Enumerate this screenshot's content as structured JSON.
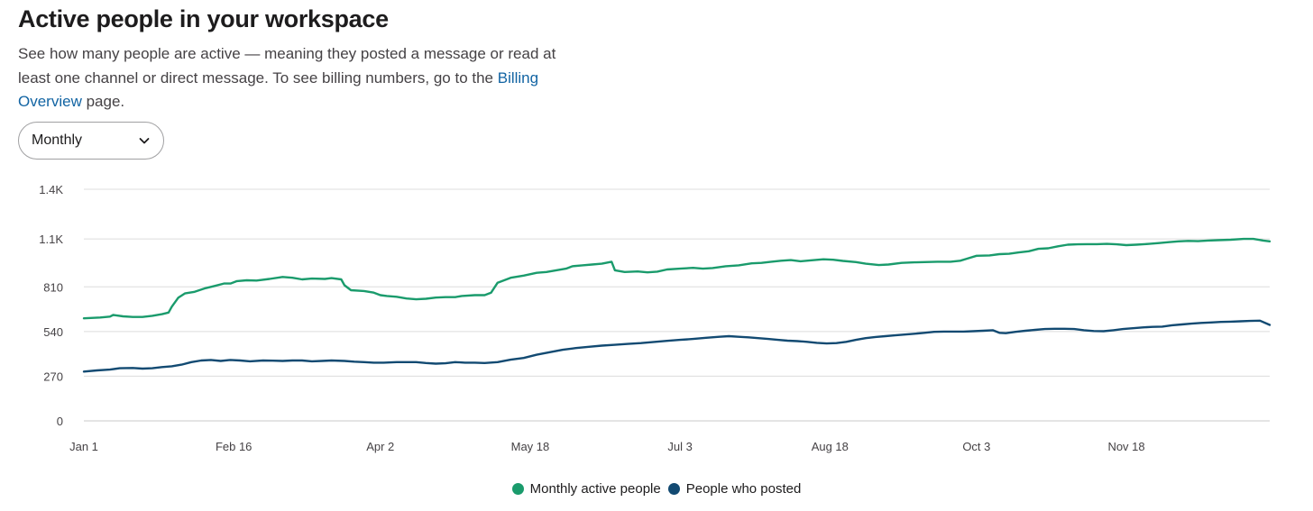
{
  "header": {
    "title": "Active people in your workspace",
    "description_prefix": "See how many people are active — meaning they posted a message or read at least one channel or direct message. To see billing numbers, go to the",
    "link_text": "Billing Overview",
    "description_suffix": "page."
  },
  "period_select": {
    "selected": "Monthly"
  },
  "colors": {
    "active": "#1a9b6c",
    "posted": "#124a72",
    "grid": "#dcdcdc",
    "link": "#1264a3"
  },
  "chart_data": {
    "type": "line",
    "title": "",
    "xlabel": "",
    "ylabel": "",
    "ylim": [
      0,
      1400
    ],
    "y_ticks": [
      0,
      270,
      540,
      810,
      1100,
      1400
    ],
    "y_tick_labels": [
      "0",
      "270",
      "540",
      "810",
      "1.1K",
      "1.4K"
    ],
    "x_range": [
      0,
      364
    ],
    "x_ticks": [
      0,
      46,
      91,
      137,
      183,
      229,
      274,
      320
    ],
    "x_tick_labels": [
      "Jan 1",
      "Feb 16",
      "Apr 2",
      "May 18",
      "Jul 3",
      "Aug 18",
      "Oct 3",
      "Nov 18"
    ],
    "legend": [
      "Monthly active people",
      "People who posted"
    ],
    "series": [
      {
        "name": "Monthly active people",
        "color": "#1a9b6c",
        "points": [
          [
            0,
            620
          ],
          [
            5,
            625
          ],
          [
            8,
            630
          ],
          [
            9,
            640
          ],
          [
            12,
            632
          ],
          [
            15,
            628
          ],
          [
            18,
            628
          ],
          [
            21,
            635
          ],
          [
            24,
            645
          ],
          [
            26,
            655
          ],
          [
            27,
            690
          ],
          [
            29,
            745
          ],
          [
            31,
            770
          ],
          [
            34,
            780
          ],
          [
            37,
            800
          ],
          [
            40,
            815
          ],
          [
            43,
            830
          ],
          [
            45,
            830
          ],
          [
            47,
            845
          ],
          [
            50,
            850
          ],
          [
            53,
            848
          ],
          [
            57,
            858
          ],
          [
            61,
            870
          ],
          [
            64,
            865
          ],
          [
            67,
            855
          ],
          [
            70,
            860
          ],
          [
            74,
            858
          ],
          [
            76,
            863
          ],
          [
            79,
            855
          ],
          [
            80,
            820
          ],
          [
            82,
            790
          ],
          [
            86,
            785
          ],
          [
            89,
            775
          ],
          [
            91,
            760
          ],
          [
            93,
            755
          ],
          [
            96,
            750
          ],
          [
            99,
            740
          ],
          [
            102,
            735
          ],
          [
            105,
            738
          ],
          [
            108,
            745
          ],
          [
            111,
            748
          ],
          [
            114,
            748
          ],
          [
            116,
            755
          ],
          [
            120,
            760
          ],
          [
            123,
            760
          ],
          [
            125,
            775
          ],
          [
            127,
            835
          ],
          [
            131,
            865
          ],
          [
            135,
            878
          ],
          [
            139,
            895
          ],
          [
            142,
            900
          ],
          [
            145,
            910
          ],
          [
            148,
            920
          ],
          [
            150,
            935
          ],
          [
            153,
            940
          ],
          [
            156,
            945
          ],
          [
            159,
            950
          ],
          [
            162,
            962
          ],
          [
            163,
            910
          ],
          [
            166,
            900
          ],
          [
            170,
            903
          ],
          [
            173,
            898
          ],
          [
            176,
            902
          ],
          [
            179,
            915
          ],
          [
            183,
            920
          ],
          [
            187,
            925
          ],
          [
            190,
            920
          ],
          [
            193,
            924
          ],
          [
            197,
            935
          ],
          [
            201,
            940
          ],
          [
            205,
            952
          ],
          [
            208,
            955
          ],
          [
            211,
            962
          ],
          [
            214,
            968
          ],
          [
            217,
            972
          ],
          [
            220,
            965
          ],
          [
            223,
            970
          ],
          [
            227,
            977
          ],
          [
            230,
            974
          ],
          [
            233,
            967
          ],
          [
            237,
            960
          ],
          [
            240,
            950
          ],
          [
            244,
            942
          ],
          [
            247,
            945
          ],
          [
            251,
            955
          ],
          [
            255,
            958
          ],
          [
            258,
            960
          ],
          [
            262,
            962
          ],
          [
            266,
            962
          ],
          [
            269,
            968
          ],
          [
            271,
            980
          ],
          [
            274,
            998
          ],
          [
            278,
            1000
          ],
          [
            281,
            1008
          ],
          [
            284,
            1010
          ],
          [
            287,
            1018
          ],
          [
            290,
            1025
          ],
          [
            293,
            1040
          ],
          [
            296,
            1043
          ],
          [
            299,
            1055
          ],
          [
            302,
            1065
          ],
          [
            305,
            1067
          ],
          [
            308,
            1068
          ],
          [
            311,
            1068
          ],
          [
            314,
            1070
          ],
          [
            317,
            1067
          ],
          [
            320,
            1062
          ],
          [
            323,
            1065
          ],
          [
            327,
            1070
          ],
          [
            330,
            1075
          ],
          [
            333,
            1080
          ],
          [
            336,
            1085
          ],
          [
            339,
            1088
          ],
          [
            342,
            1086
          ],
          [
            345,
            1090
          ],
          [
            348,
            1092
          ],
          [
            352,
            1095
          ],
          [
            356,
            1100
          ],
          [
            359,
            1100
          ],
          [
            362,
            1090
          ],
          [
            364,
            1085
          ]
        ]
      },
      {
        "name": "People who posted",
        "color": "#124a72",
        "points": [
          [
            0,
            298
          ],
          [
            4,
            305
          ],
          [
            8,
            310
          ],
          [
            11,
            318
          ],
          [
            15,
            320
          ],
          [
            18,
            316
          ],
          [
            21,
            318
          ],
          [
            24,
            325
          ],
          [
            27,
            330
          ],
          [
            30,
            340
          ],
          [
            33,
            355
          ],
          [
            36,
            365
          ],
          [
            39,
            368
          ],
          [
            42,
            362
          ],
          [
            45,
            368
          ],
          [
            48,
            365
          ],
          [
            51,
            360
          ],
          [
            55,
            365
          ],
          [
            58,
            364
          ],
          [
            61,
            362
          ],
          [
            64,
            365
          ],
          [
            67,
            365
          ],
          [
            70,
            360
          ],
          [
            73,
            362
          ],
          [
            76,
            365
          ],
          [
            80,
            362
          ],
          [
            83,
            358
          ],
          [
            86,
            355
          ],
          [
            89,
            352
          ],
          [
            92,
            352
          ],
          [
            96,
            355
          ],
          [
            99,
            355
          ],
          [
            102,
            355
          ],
          [
            105,
            350
          ],
          [
            108,
            346
          ],
          [
            111,
            348
          ],
          [
            114,
            355
          ],
          [
            117,
            352
          ],
          [
            120,
            352
          ],
          [
            123,
            350
          ],
          [
            127,
            355
          ],
          [
            131,
            370
          ],
          [
            135,
            380
          ],
          [
            139,
            400
          ],
          [
            143,
            415
          ],
          [
            147,
            430
          ],
          [
            151,
            440
          ],
          [
            155,
            448
          ],
          [
            159,
            455
          ],
          [
            163,
            460
          ],
          [
            167,
            465
          ],
          [
            171,
            470
          ],
          [
            175,
            477
          ],
          [
            179,
            484
          ],
          [
            183,
            490
          ],
          [
            187,
            495
          ],
          [
            191,
            502
          ],
          [
            195,
            508
          ],
          [
            198,
            512
          ],
          [
            201,
            508
          ],
          [
            204,
            505
          ],
          [
            207,
            500
          ],
          [
            210,
            495
          ],
          [
            213,
            490
          ],
          [
            216,
            485
          ],
          [
            219,
            482
          ],
          [
            222,
            478
          ],
          [
            225,
            472
          ],
          [
            228,
            468
          ],
          [
            231,
            470
          ],
          [
            234,
            478
          ],
          [
            237,
            490
          ],
          [
            240,
            500
          ],
          [
            243,
            507
          ],
          [
            246,
            512
          ],
          [
            249,
            517
          ],
          [
            252,
            522
          ],
          [
            255,
            527
          ],
          [
            258,
            532
          ],
          [
            261,
            538
          ],
          [
            264,
            540
          ],
          [
            267,
            540
          ],
          [
            270,
            540
          ],
          [
            273,
            542
          ],
          [
            276,
            545
          ],
          [
            279,
            548
          ],
          [
            281,
            532
          ],
          [
            283,
            530
          ],
          [
            286,
            538
          ],
          [
            289,
            545
          ],
          [
            292,
            550
          ],
          [
            295,
            555
          ],
          [
            298,
            557
          ],
          [
            301,
            557
          ],
          [
            304,
            555
          ],
          [
            307,
            548
          ],
          [
            310,
            543
          ],
          [
            313,
            542
          ],
          [
            316,
            548
          ],
          [
            319,
            555
          ],
          [
            322,
            560
          ],
          [
            325,
            565
          ],
          [
            328,
            568
          ],
          [
            331,
            570
          ],
          [
            334,
            578
          ],
          [
            337,
            583
          ],
          [
            340,
            588
          ],
          [
            343,
            592
          ],
          [
            346,
            595
          ],
          [
            349,
            598
          ],
          [
            352,
            600
          ],
          [
            355,
            602
          ],
          [
            358,
            604
          ],
          [
            361,
            606
          ],
          [
            364,
            580
          ]
        ]
      }
    ]
  }
}
